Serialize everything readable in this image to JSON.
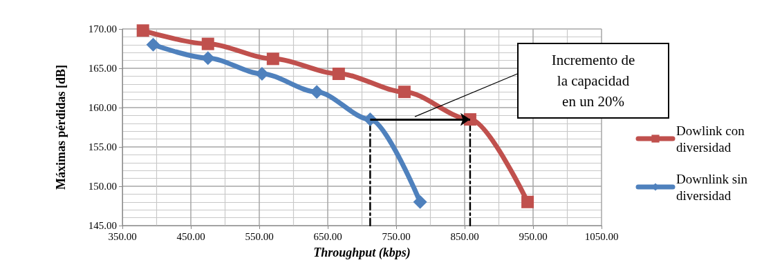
{
  "chart_data": {
    "type": "line",
    "xlabel": "Throughput (kbps)",
    "ylabel": "Máximas pérdidas [dB]",
    "xlim": [
      350,
      1050
    ],
    "xticks": [
      {
        "value": 350,
        "label": "350.00"
      },
      {
        "value": 450,
        "label": "450.00"
      },
      {
        "value": 550,
        "label": "550.00"
      },
      {
        "value": 650,
        "label": "650.00"
      },
      {
        "value": 750,
        "label": "750.00"
      },
      {
        "value": 850,
        "label": "850.00"
      },
      {
        "value": 950,
        "label": "950.00"
      },
      {
        "value": 1050,
        "label": "1050.00"
      }
    ],
    "ylim": [
      145,
      170
    ],
    "yticks": [
      {
        "value": 145,
        "label": "145.00"
      },
      {
        "value": 150,
        "label": "150.00"
      },
      {
        "value": 155,
        "label": "155.00"
      },
      {
        "value": 160,
        "label": "160.00"
      },
      {
        "value": 165,
        "label": "165.00"
      },
      {
        "value": 170,
        "label": "170.00"
      }
    ],
    "grid": true,
    "legend": "right",
    "line_style": "solid",
    "series": [
      {
        "name": "Dowlink con diversidad",
        "color": "#c0504d",
        "marker": "square",
        "x": [
          380,
          475,
          570,
          666,
          762,
          858,
          942
        ],
        "values": [
          169.8,
          168.1,
          166.2,
          164.3,
          162.0,
          158.5,
          148.0
        ]
      },
      {
        "name": "Downlink sin diversidad",
        "color": "#4f81bd",
        "marker": "diamond",
        "x": [
          395,
          475,
          554,
          634,
          712,
          785
        ],
        "values": [
          168.0,
          166.3,
          164.3,
          162.0,
          158.5,
          148.0
        ]
      },
      {
        "color": "#000000",
        "marker": "none",
        "line_style": "dashed",
        "x": [
          712,
          712
        ],
        "values": [
          145,
          158.5
        ]
      },
      {
        "color": "#000000",
        "marker": "none",
        "line_style": "dashed",
        "x": [
          858,
          858
        ],
        "values": [
          145,
          158.5
        ]
      }
    ],
    "annotations": [
      "Incremento de\nla capacidad\nen un 20%"
    ]
  }
}
